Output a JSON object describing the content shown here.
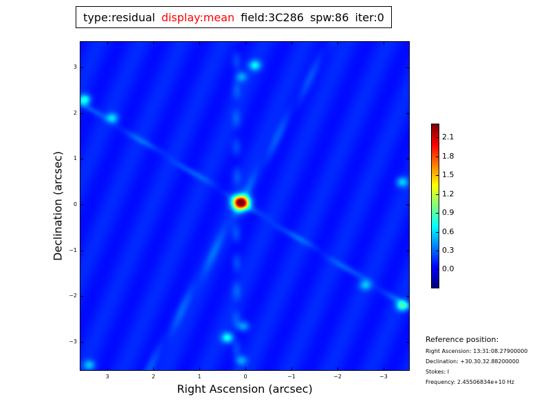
{
  "title": {
    "parts": [
      {
        "text": "type:residual",
        "color": "#000000"
      },
      {
        "text": "display:mean",
        "color": "#ff0000"
      },
      {
        "text": "field:3C286",
        "color": "#000000"
      },
      {
        "text": "spw:86",
        "color": "#000000"
      },
      {
        "text": "iter:0",
        "color": "#000000"
      }
    ]
  },
  "chart_data": {
    "type": "heatmap",
    "colormap": "jet",
    "xlabel": "Right Ascension (arcsec)",
    "ylabel": "Declination (arcsec)",
    "xlim": [
      3.6,
      -3.57
    ],
    "ylim": [
      -3.63,
      3.57
    ],
    "x_ticks": [
      "3",
      "2",
      "1",
      "0",
      "−1",
      "−2",
      "−3"
    ],
    "x_tick_values": [
      3,
      2,
      1,
      0,
      -1,
      -2,
      -3
    ],
    "y_ticks": [
      "3",
      "2",
      "1",
      "0",
      "−1",
      "−2",
      "−3"
    ],
    "y_tick_values": [
      3,
      2,
      1,
      0,
      -1,
      -2,
      -3
    ],
    "color_range": [
      -0.29,
      2.31
    ],
    "colorbar_ticks": [
      "2.1",
      "1.8",
      "1.5",
      "1.2",
      "0.9",
      "0.6",
      "0.3",
      "0.0"
    ],
    "colorbar_tick_values": [
      2.1,
      1.8,
      1.5,
      1.2,
      0.9,
      0.6,
      0.3,
      0.0
    ],
    "background_level": 0.1,
    "peak": {
      "x": 0.1,
      "y": 0.05,
      "value": 2.3
    },
    "features": [
      {
        "x": -0.2,
        "y": 3.05,
        "value": 0.65
      },
      {
        "x": 0.1,
        "y": 2.8,
        "value": 0.45
      },
      {
        "x": 3.5,
        "y": 2.3,
        "value": 0.75
      },
      {
        "x": 2.9,
        "y": 1.9,
        "value": 0.55
      },
      {
        "x": -3.4,
        "y": 0.5,
        "value": 0.55
      },
      {
        "x": -3.4,
        "y": -2.2,
        "value": 0.8
      },
      {
        "x": -2.6,
        "y": -1.75,
        "value": 0.5
      },
      {
        "x": 0.4,
        "y": -2.9,
        "value": 0.7
      },
      {
        "x": 0.05,
        "y": -2.65,
        "value": 0.45
      },
      {
        "x": 3.4,
        "y": -3.5,
        "value": 0.5
      },
      {
        "x": 0.1,
        "y": -3.4,
        "value": 0.45
      }
    ]
  },
  "reference": {
    "heading": "Reference position:",
    "ra": "Right Ascension: 13:31:08.27900000",
    "dec": "Declination: +30.30.32.88200000",
    "stokes": "Stokes: I",
    "frequency": "Frequency: 2.45506834e+10 Hz"
  }
}
